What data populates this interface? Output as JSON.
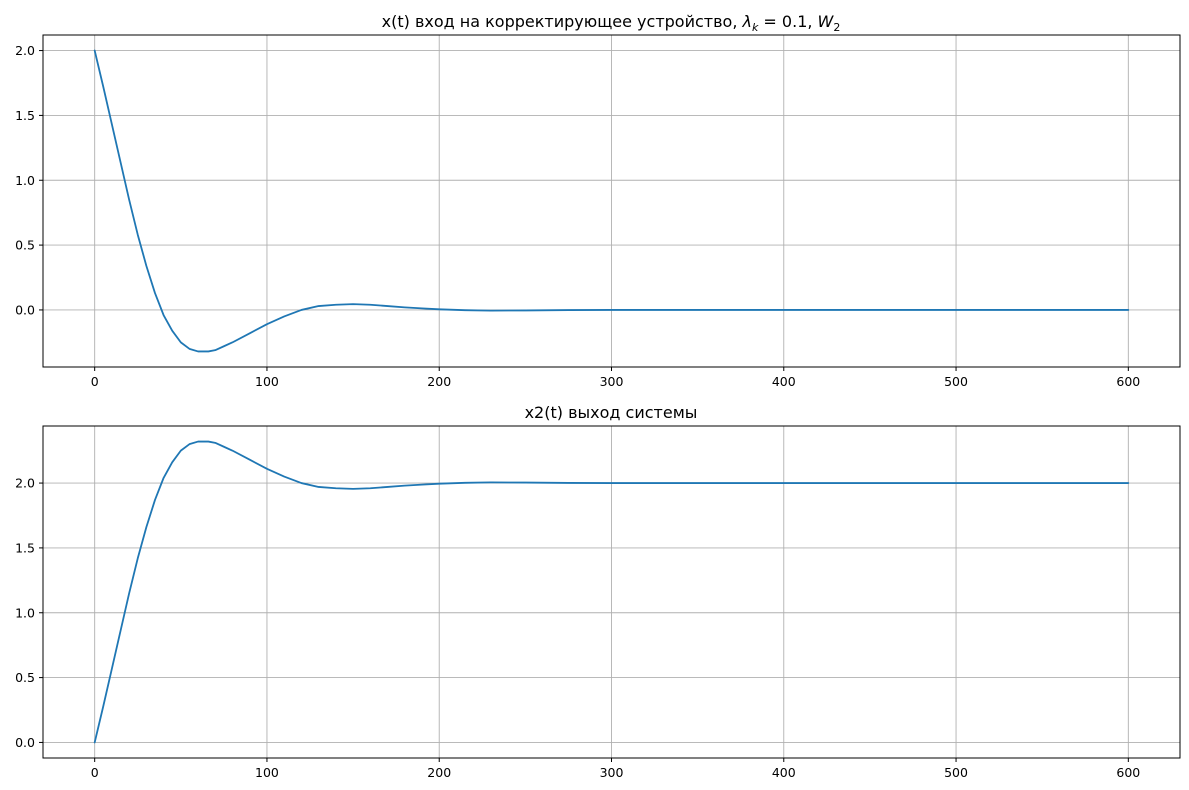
{
  "chart_data": [
    {
      "type": "line",
      "title_main": "x(t) вход на корректирующее устройство, ",
      "title_lambda": "λ",
      "title_lambda_sub": "k",
      "title_mid": " = 0.1, ",
      "title_w": "W",
      "title_w_sub": "2",
      "xlim": [
        -30,
        630
      ],
      "ylim": [
        -0.44,
        2.12
      ],
      "xticks": [
        0,
        100,
        200,
        300,
        400,
        500,
        600
      ],
      "xtick_labels": [
        "0",
        "100",
        "200",
        "300",
        "400",
        "500",
        "600"
      ],
      "yticks": [
        0.0,
        0.5,
        1.0,
        1.5,
        2.0
      ],
      "ytick_labels": [
        "0.0",
        "0.5",
        "1.0",
        "1.5",
        "2.0"
      ],
      "grid": true,
      "series": [
        {
          "color": "#1f77b4",
          "x": [
            0,
            5,
            10,
            15,
            20,
            25,
            30,
            35,
            40,
            45,
            50,
            55,
            60,
            66,
            70,
            75,
            80,
            90,
            100,
            110,
            120,
            130,
            140,
            150,
            160,
            170,
            180,
            190,
            200,
            215,
            230,
            250,
            275,
            300,
            330,
            360,
            400,
            450,
            500,
            550,
            600
          ],
          "y": [
            2.0,
            1.72,
            1.43,
            1.14,
            0.85,
            0.58,
            0.34,
            0.13,
            -0.04,
            -0.16,
            -0.25,
            -0.3,
            -0.32,
            -0.32,
            -0.31,
            -0.28,
            -0.25,
            -0.18,
            -0.11,
            -0.05,
            -0.0,
            0.03,
            0.04,
            0.045,
            0.04,
            0.03,
            0.02,
            0.012,
            0.005,
            -0.002,
            -0.005,
            -0.004,
            -0.001,
            0.0,
            0.0,
            0.0,
            0.0,
            0.0,
            0.0,
            0.0,
            0.0
          ]
        }
      ]
    },
    {
      "type": "line",
      "title": "x2(t) выход системы",
      "xlim": [
        -30,
        630
      ],
      "ylim": [
        -0.12,
        2.44
      ],
      "xticks": [
        0,
        100,
        200,
        300,
        400,
        500,
        600
      ],
      "xtick_labels": [
        "0",
        "100",
        "200",
        "300",
        "400",
        "500",
        "600"
      ],
      "yticks": [
        0.0,
        0.5,
        1.0,
        1.5,
        2.0
      ],
      "ytick_labels": [
        "0.0",
        "0.5",
        "1.0",
        "1.5",
        "2.0"
      ],
      "grid": true,
      "series": [
        {
          "color": "#1f77b4",
          "x": [
            0,
            5,
            10,
            15,
            20,
            25,
            30,
            35,
            40,
            45,
            50,
            55,
            60,
            66,
            70,
            75,
            80,
            90,
            100,
            110,
            120,
            130,
            140,
            150,
            160,
            170,
            180,
            190,
            200,
            215,
            230,
            250,
            275,
            300,
            330,
            360,
            400,
            450,
            500,
            550,
            600
          ],
          "y": [
            0.0,
            0.28,
            0.57,
            0.86,
            1.15,
            1.42,
            1.66,
            1.87,
            2.04,
            2.16,
            2.25,
            2.3,
            2.32,
            2.32,
            2.31,
            2.28,
            2.25,
            2.18,
            2.11,
            2.05,
            2.0,
            1.97,
            1.96,
            1.955,
            1.96,
            1.97,
            1.98,
            1.988,
            1.995,
            2.002,
            2.005,
            2.004,
            2.001,
            2.0,
            2.0,
            2.0,
            2.0,
            2.0,
            2.0,
            2.0,
            2.0
          ]
        }
      ]
    }
  ]
}
